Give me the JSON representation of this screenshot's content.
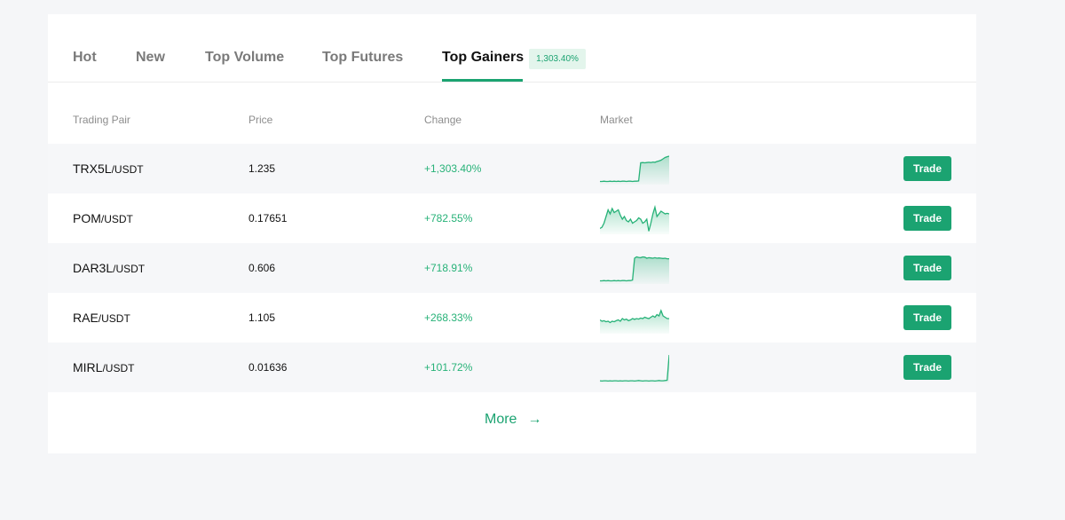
{
  "tabs": [
    {
      "label": "Hot"
    },
    {
      "label": "New"
    },
    {
      "label": "Top Volume"
    },
    {
      "label": "Top Futures"
    },
    {
      "label": "Top Gainers",
      "badge": "1,303.40%"
    }
  ],
  "active_tab": "Top Gainers",
  "columns": {
    "pair": "Trading Pair",
    "price": "Price",
    "change": "Change",
    "market": "Market"
  },
  "rows": [
    {
      "base": "TRX5L",
      "quote": "/USDT",
      "price": "1.235",
      "change": "+1,303.40%",
      "action": "Trade",
      "spark": [
        0.05,
        0.05,
        0.06,
        0.05,
        0.05,
        0.06,
        0.05,
        0.06,
        0.05,
        0.06,
        0.05,
        0.06,
        0.06,
        0.05,
        0.06,
        0.06,
        0.05,
        0.06,
        0.06,
        0.07,
        0.75,
        0.76,
        0.75,
        0.76,
        0.77,
        0.76,
        0.78,
        0.77,
        0.8,
        0.82,
        0.85,
        0.9,
        0.95,
        0.98,
        1.0
      ]
    },
    {
      "base": "POM",
      "quote": "/USDT",
      "price": "0.17651",
      "change": "+782.55%",
      "action": "Trade",
      "spark": [
        0.15,
        0.2,
        0.35,
        0.6,
        0.85,
        0.7,
        0.9,
        0.75,
        0.8,
        0.85,
        0.65,
        0.5,
        0.6,
        0.45,
        0.4,
        0.5,
        0.35,
        0.4,
        0.45,
        0.55,
        0.5,
        0.35,
        0.4,
        0.5,
        0.05,
        0.35,
        0.7,
        0.95,
        0.6,
        0.7,
        0.8,
        0.75,
        0.7,
        0.72,
        0.7
      ]
    },
    {
      "base": "DAR3L",
      "quote": "/USDT",
      "price": "0.606",
      "change": "+718.91%",
      "action": "Trade",
      "spark": [
        0.05,
        0.05,
        0.06,
        0.05,
        0.06,
        0.05,
        0.05,
        0.06,
        0.05,
        0.06,
        0.05,
        0.06,
        0.06,
        0.05,
        0.06,
        0.06,
        0.08,
        0.9,
        0.95,
        0.93,
        0.92,
        0.95,
        0.94,
        0.9,
        0.92,
        0.91,
        0.9,
        0.92,
        0.9,
        0.91,
        0.9,
        0.89,
        0.9,
        0.88,
        0.88
      ]
    },
    {
      "base": "RAE",
      "quote": "/USDT",
      "price": "1.105",
      "change": "+268.33%",
      "action": "Trade",
      "spark": [
        0.45,
        0.4,
        0.42,
        0.38,
        0.4,
        0.35,
        0.4,
        0.38,
        0.42,
        0.45,
        0.4,
        0.5,
        0.45,
        0.48,
        0.42,
        0.45,
        0.5,
        0.47,
        0.5,
        0.48,
        0.52,
        0.5,
        0.55,
        0.52,
        0.5,
        0.55,
        0.6,
        0.55,
        0.65,
        0.6,
        0.8,
        0.6,
        0.55,
        0.5,
        0.5
      ]
    },
    {
      "base": "MIRL",
      "quote": "/USDT",
      "price": "0.01636",
      "change": "+101.72%",
      "action": "Trade",
      "spark": [
        0.03,
        0.02,
        0.03,
        0.03,
        0.02,
        0.03,
        0.02,
        0.03,
        0.03,
        0.02,
        0.03,
        0.02,
        0.03,
        0.03,
        0.02,
        0.03,
        0.03,
        0.02,
        0.03,
        0.04,
        0.03,
        0.02,
        0.03,
        0.03,
        0.02,
        0.03,
        0.03,
        0.02,
        0.03,
        0.04,
        0.03,
        0.03,
        0.04,
        0.05,
        1.0
      ]
    }
  ],
  "more": {
    "label": "More",
    "arrow": "→"
  },
  "colors": {
    "accent": "#1ba371",
    "positive": "#27b278"
  }
}
